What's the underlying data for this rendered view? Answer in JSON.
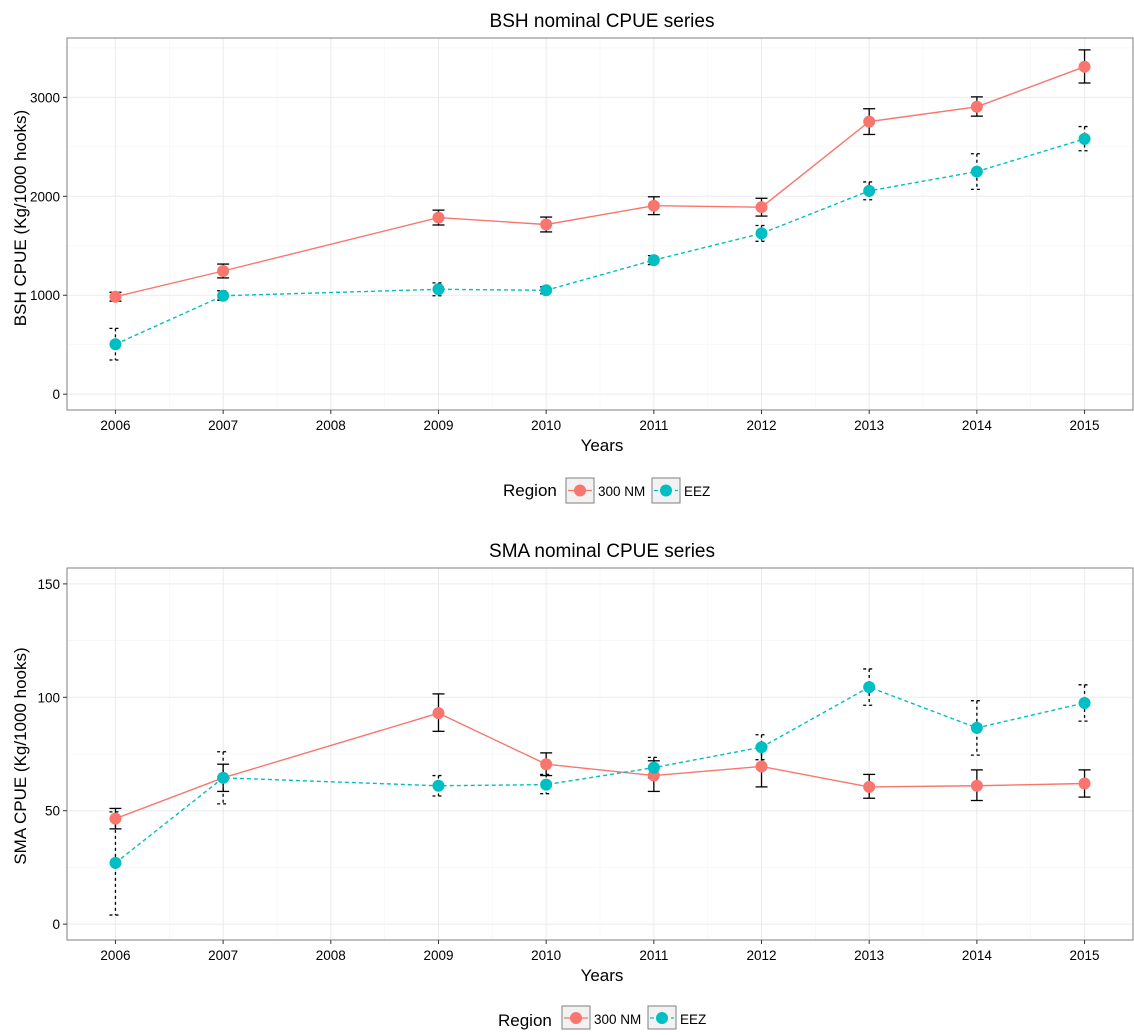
{
  "colors": {
    "series_300nm": "#F8766D",
    "series_eez": "#00BFC4",
    "errorbar": "#000000",
    "panel_border": "#7f7f7f",
    "grid_major": "#ebebeb",
    "grid_minor": "#f5f5f5",
    "text": "#000000"
  },
  "legend": {
    "title": "Region",
    "items": [
      "300 NM",
      "EEZ"
    ]
  },
  "chart_data": [
    {
      "type": "line",
      "title": "BSH nominal CPUE series",
      "xlabel": "Years",
      "ylabel": "BSH CPUE (Kg/1000 hooks)",
      "x_ticks": [
        "2006",
        "2007",
        "2008",
        "2009",
        "2010",
        "2011",
        "2012",
        "2013",
        "2014",
        "2015"
      ],
      "xlim": [
        2005.55,
        2015.45
      ],
      "ylim": [
        -160,
        3600
      ],
      "y_ticks": [
        0,
        1000,
        2000,
        3000
      ],
      "grid": true,
      "legend_position": "bottom",
      "series": [
        {
          "name": "300 NM",
          "line_style": "solid",
          "x": [
            2006,
            2007,
            2009,
            2010,
            2011,
            2012,
            2013,
            2014,
            2015
          ],
          "y": [
            985,
            1245,
            1785,
            1715,
            1905,
            1890,
            2755,
            2905,
            3310
          ],
          "err_low": [
            940,
            1175,
            1710,
            1640,
            1815,
            1800,
            2625,
            2810,
            3145
          ],
          "err_high": [
            1030,
            1315,
            1860,
            1790,
            1995,
            1980,
            2885,
            3005,
            3480
          ]
        },
        {
          "name": "EEZ",
          "line_style": "dashed",
          "x": [
            2006,
            2007,
            2009,
            2010,
            2011,
            2012,
            2013,
            2014,
            2015
          ],
          "y": [
            505,
            995,
            1060,
            1050,
            1355,
            1625,
            2055,
            2250,
            2580
          ],
          "err_low": [
            345,
            950,
            995,
            1015,
            1310,
            1545,
            1965,
            2070,
            2460
          ],
          "err_high": [
            665,
            1045,
            1125,
            1085,
            1400,
            1705,
            2145,
            2430,
            2705
          ]
        }
      ]
    },
    {
      "type": "line",
      "title": "SMA nominal CPUE series",
      "xlabel": "Years",
      "ylabel": "SMA CPUE (Kg/1000 hooks)",
      "x_ticks": [
        "2006",
        "2007",
        "2008",
        "2009",
        "2010",
        "2011",
        "2012",
        "2013",
        "2014",
        "2015"
      ],
      "xlim": [
        2005.55,
        2015.45
      ],
      "ylim": [
        -7,
        157
      ],
      "y_ticks": [
        0,
        50,
        100,
        150
      ],
      "grid": true,
      "legend_position": "bottom",
      "series": [
        {
          "name": "300 NM",
          "line_style": "solid",
          "x": [
            2006,
            2007,
            2009,
            2010,
            2011,
            2012,
            2013,
            2014,
            2015
          ],
          "y": [
            46.5,
            64.5,
            93,
            70.5,
            65.5,
            69.5,
            60.5,
            61,
            62
          ],
          "err_low": [
            42,
            58.5,
            85,
            65.5,
            58.5,
            60.5,
            55.5,
            54.5,
            56
          ],
          "err_high": [
            51,
            70.5,
            101.5,
            75.5,
            72,
            78.5,
            66,
            68,
            68
          ]
        },
        {
          "name": "EEZ",
          "line_style": "dashed",
          "x": [
            2006,
            2007,
            2009,
            2010,
            2011,
            2012,
            2013,
            2014,
            2015
          ],
          "y": [
            27,
            64.5,
            61,
            61.5,
            69,
            78,
            104.5,
            86.5,
            97.5
          ],
          "err_low": [
            4,
            53,
            56.5,
            57.5,
            64.5,
            72.5,
            96.5,
            74.5,
            89.5
          ],
          "err_high": [
            49.5,
            76,
            65.5,
            66,
            73.5,
            83.5,
            112.5,
            98.5,
            105.5
          ]
        }
      ]
    }
  ]
}
